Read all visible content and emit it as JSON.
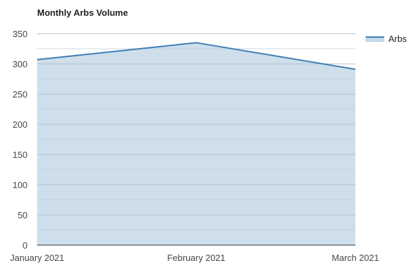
{
  "chart_data": {
    "type": "area",
    "title": "Monthly Arbs Volume",
    "categories": [
      "January 2021",
      "February 2021",
      "March 2021"
    ],
    "series": [
      {
        "name": "Arbs",
        "values": [
          307,
          335,
          291
        ]
      }
    ],
    "ylim": [
      0,
      350
    ],
    "y_ticks": [
      0,
      50,
      100,
      150,
      200,
      250,
      300,
      350
    ],
    "grid": true,
    "legend_position": "top-right",
    "colors": {
      "line": "#3d7cb5",
      "fill": "#c5d9e8",
      "grid": "#cccccc",
      "minor_grid": "#e6e6e6"
    }
  }
}
